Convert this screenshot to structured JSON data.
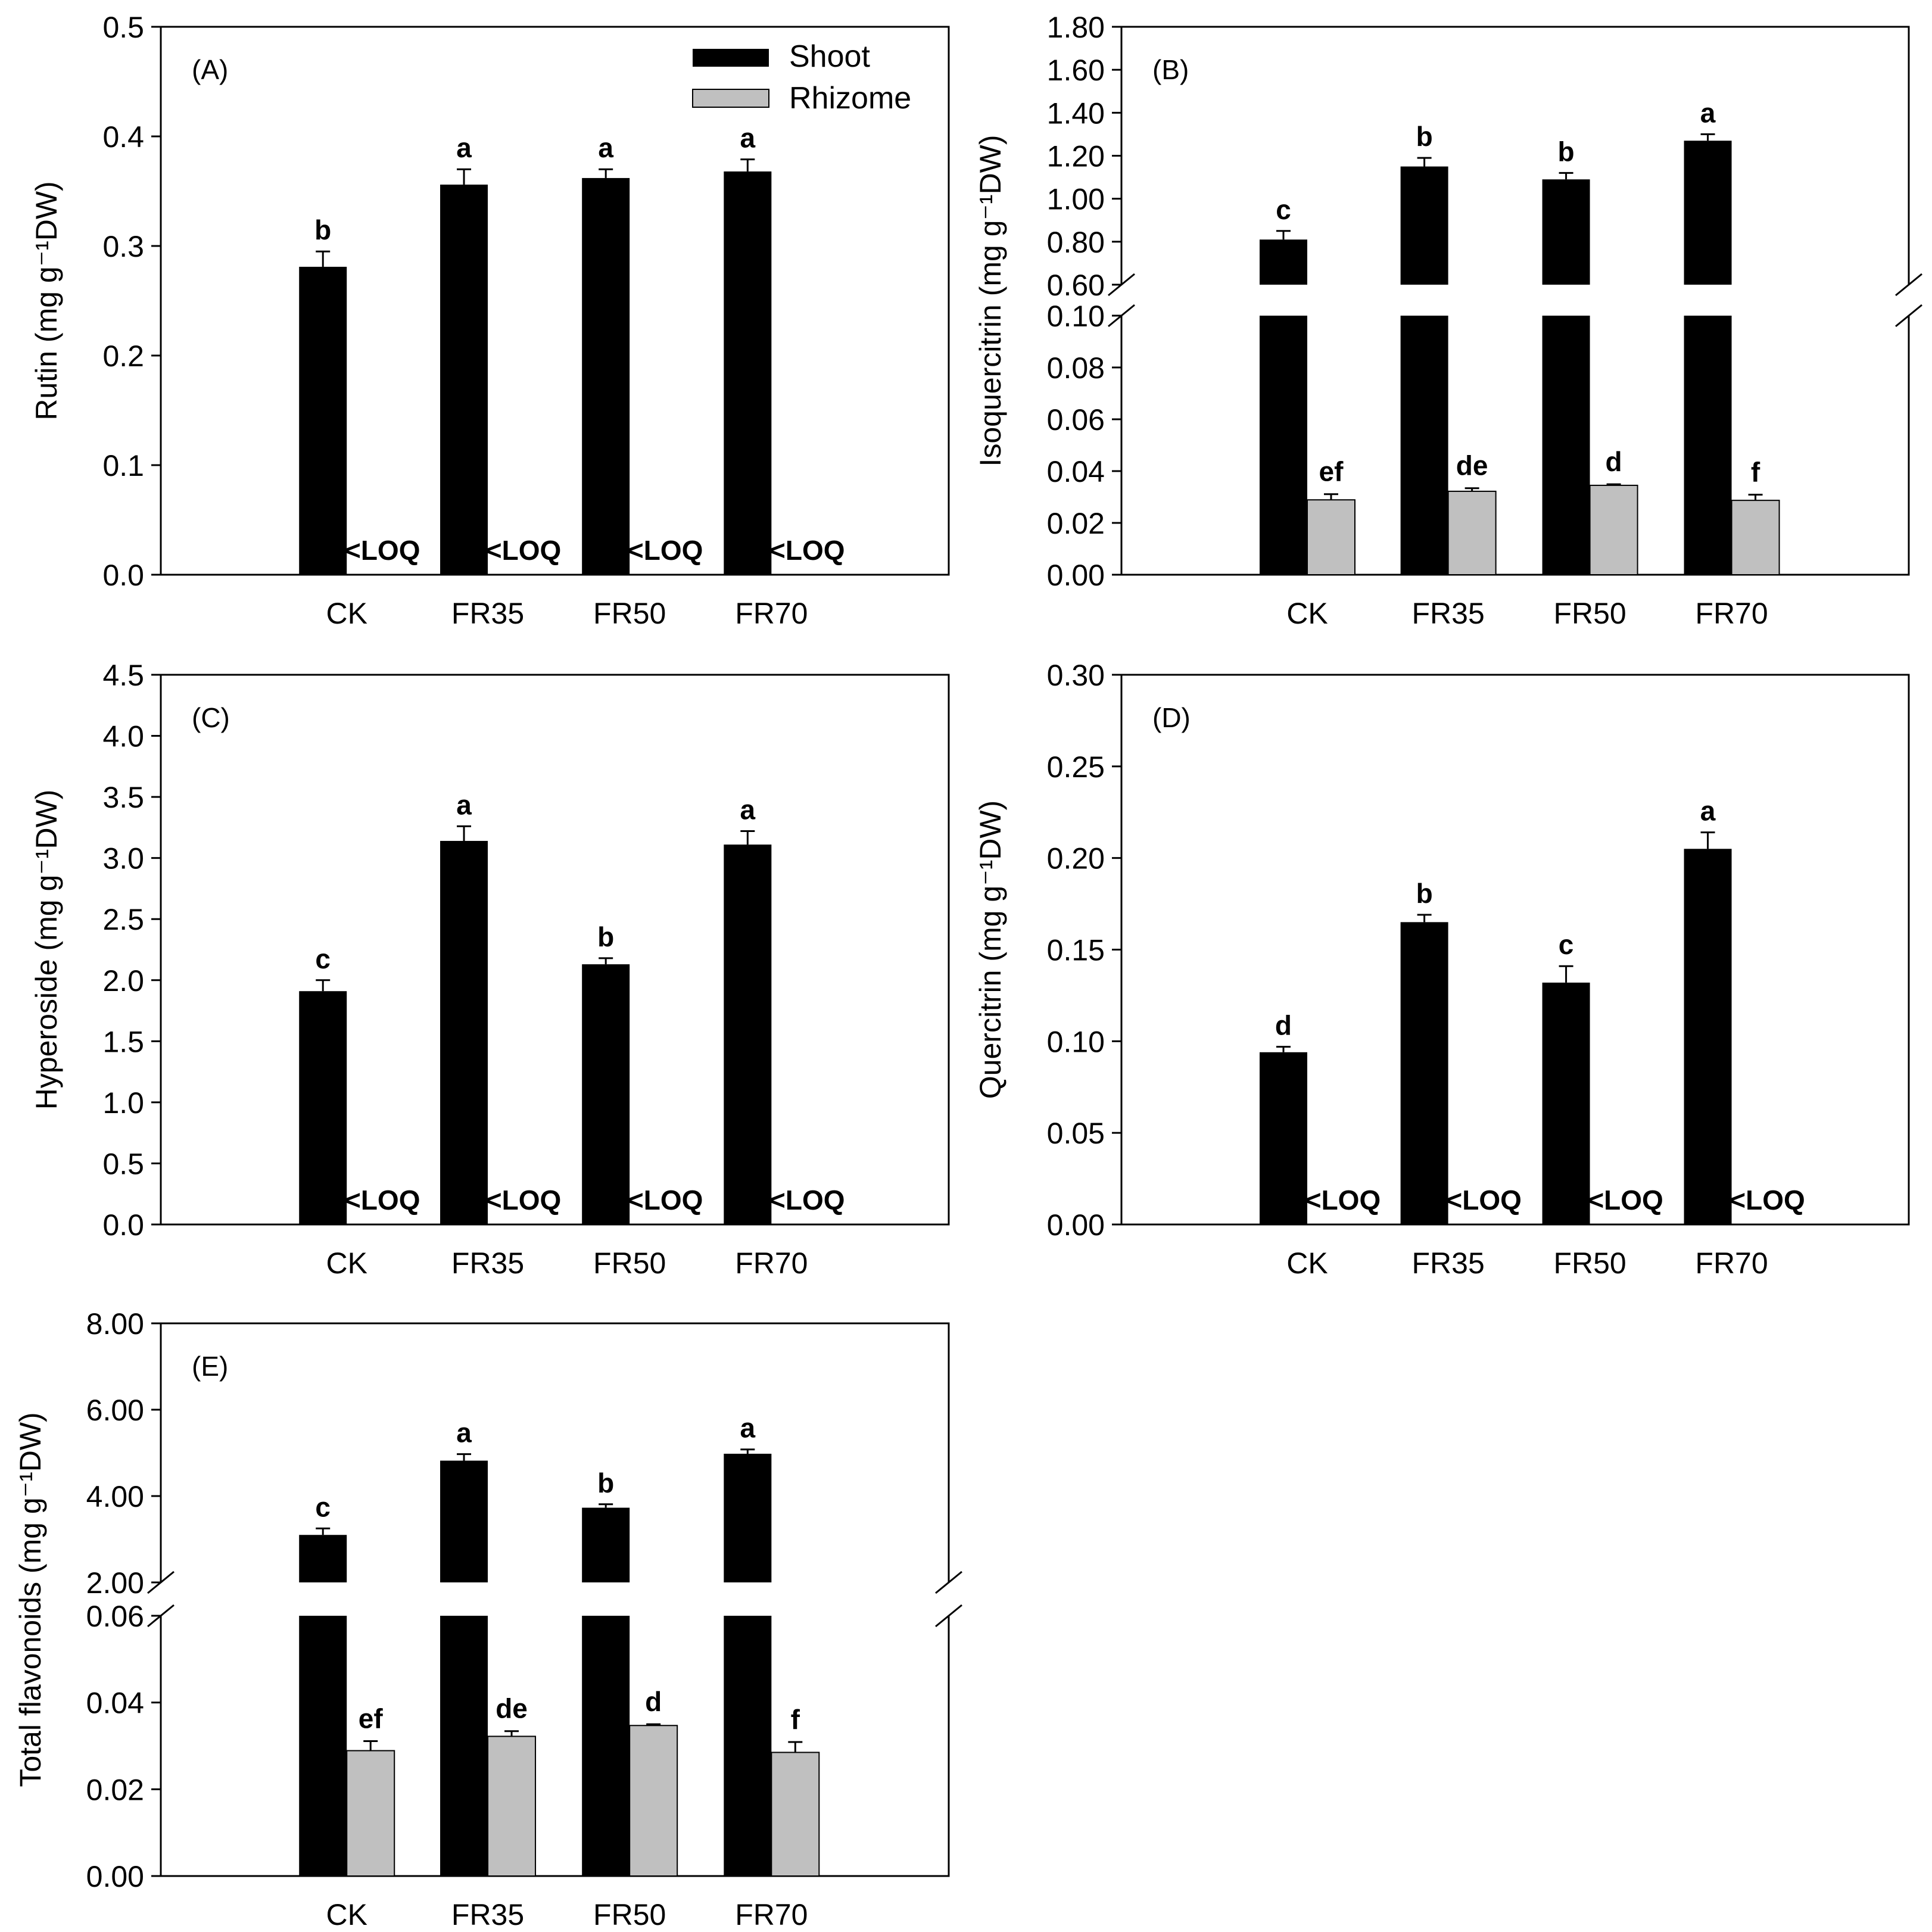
{
  "figure": {
    "legend": {
      "shoot": "Shoot",
      "rhizome": "Rhizome"
    },
    "colors": {
      "shoot": "#000000",
      "rhizome": "#c0c0c0",
      "frame": "#000000"
    }
  },
  "chart_data": [
    {
      "type": "bar",
      "panel": "(A)",
      "ylabel": "Rutin (mg g⁻¹DW)",
      "categories": [
        "CK",
        "FR35",
        "FR50",
        "FR70"
      ],
      "ylim": [
        0,
        0.5
      ],
      "yticks": [
        "0.0",
        "0.1",
        "0.2",
        "0.3",
        "0.4",
        "0.5"
      ],
      "series": [
        {
          "name": "Shoot",
          "values": [
            0.281,
            0.356,
            0.362,
            0.368
          ],
          "errors": [
            0.014,
            0.014,
            0.008,
            0.011
          ],
          "labels": [
            "b",
            "a",
            "a",
            "a"
          ]
        },
        {
          "name": "Rhizome",
          "values": [
            null,
            null,
            null,
            null
          ],
          "errors": [
            null,
            null,
            null,
            null
          ],
          "labels": [
            "<LOQ",
            "<LOQ",
            "<LOQ",
            "<LOQ"
          ]
        }
      ]
    },
    {
      "type": "bar",
      "panel": "(B)",
      "ylabel": "Isoquercitrin (mg g⁻¹DW)",
      "categories": [
        "CK",
        "FR35",
        "FR50",
        "FR70"
      ],
      "broken_axis": true,
      "ylim_lower": [
        0,
        0.1
      ],
      "yticks_lower": [
        "0.00",
        "0.02",
        "0.04",
        "0.06",
        "0.08",
        "0.10"
      ],
      "ylim_upper": [
        0.6,
        1.8
      ],
      "yticks_upper": [
        "0.60",
        "0.80",
        "1.00",
        "1.20",
        "1.40",
        "1.60",
        "1.80"
      ],
      "series": [
        {
          "name": "Shoot",
          "values": [
            0.81,
            1.15,
            1.09,
            1.27
          ],
          "errors": [
            0.04,
            0.04,
            0.03,
            0.03
          ],
          "labels": [
            "c",
            "b",
            "b",
            "a"
          ]
        },
        {
          "name": "Rhizome",
          "values": [
            0.0289,
            0.0322,
            0.0345,
            0.0287
          ],
          "errors": [
            0.0022,
            0.0012,
            0.0004,
            0.0022
          ],
          "labels": [
            "ef",
            "de",
            "d",
            "f"
          ]
        }
      ]
    },
    {
      "type": "bar",
      "panel": "(C)",
      "ylabel": "Hyperoside (mg g⁻¹DW)",
      "categories": [
        "CK",
        "FR35",
        "FR50",
        "FR70"
      ],
      "ylim": [
        0,
        4.5
      ],
      "yticks": [
        "0.0",
        "0.5",
        "1.0",
        "1.5",
        "2.0",
        "2.5",
        "3.0",
        "3.5",
        "4.0",
        "4.5"
      ],
      "series": [
        {
          "name": "Shoot",
          "values": [
            1.91,
            3.14,
            2.13,
            3.11
          ],
          "errors": [
            0.09,
            0.12,
            0.05,
            0.11
          ],
          "labels": [
            "c",
            "a",
            "b",
            "a"
          ]
        },
        {
          "name": "Rhizome",
          "values": [
            null,
            null,
            null,
            null
          ],
          "errors": [
            null,
            null,
            null,
            null
          ],
          "labels": [
            "<LOQ",
            "<LOQ",
            "<LOQ",
            "<LOQ"
          ]
        }
      ]
    },
    {
      "type": "bar",
      "panel": "(D)",
      "ylabel": "Quercitrin (mg g⁻¹DW)",
      "categories": [
        "CK",
        "FR35",
        "FR50",
        "FR70"
      ],
      "ylim": [
        0,
        0.3
      ],
      "yticks": [
        "0.00",
        "0.05",
        "0.10",
        "0.15",
        "0.20",
        "0.25",
        "0.30"
      ],
      "series": [
        {
          "name": "Shoot",
          "values": [
            0.094,
            0.165,
            0.132,
            0.205
          ],
          "errors": [
            0.003,
            0.004,
            0.009,
            0.009
          ],
          "labels": [
            "d",
            "b",
            "c",
            "a"
          ]
        },
        {
          "name": "Rhizome",
          "values": [
            null,
            null,
            null,
            null
          ],
          "errors": [
            null,
            null,
            null,
            null
          ],
          "labels": [
            "<LOQ",
            "<LOQ",
            "<LOQ",
            "<LOQ"
          ]
        }
      ]
    },
    {
      "type": "bar",
      "panel": "(E)",
      "ylabel": "Total flavonoids (mg g⁻¹DW)",
      "categories": [
        "CK",
        "FR35",
        "FR50",
        "FR70"
      ],
      "broken_axis": true,
      "ylim_lower": [
        0,
        0.06
      ],
      "yticks_lower": [
        "0.00",
        "0.02",
        "0.04",
        "0.06"
      ],
      "ylim_upper": [
        2.0,
        8.0
      ],
      "yticks_upper": [
        "2.00",
        "4.00",
        "6.00",
        "8.00"
      ],
      "series": [
        {
          "name": "Shoot",
          "values": [
            3.1,
            4.82,
            3.73,
            4.98
          ],
          "errors": [
            0.15,
            0.15,
            0.08,
            0.1
          ],
          "labels": [
            "c",
            "a",
            "b",
            "a"
          ]
        },
        {
          "name": "Rhizome",
          "values": [
            0.0289,
            0.0322,
            0.0347,
            0.0285
          ],
          "errors": [
            0.0022,
            0.0012,
            0.0003,
            0.0024
          ],
          "labels": [
            "ef",
            "de",
            "d",
            "f"
          ]
        }
      ]
    }
  ]
}
